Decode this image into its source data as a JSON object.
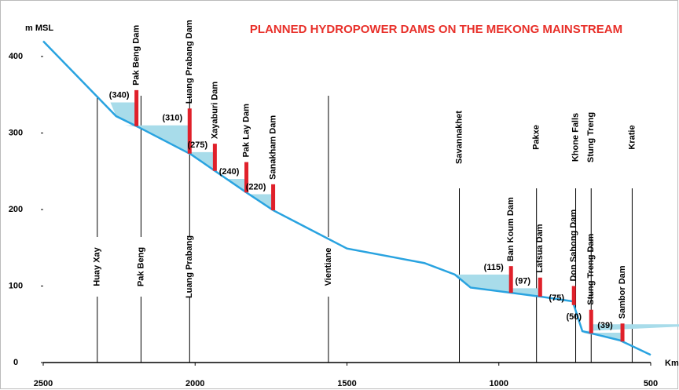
{
  "chart_data": {
    "type": "line",
    "title": "PLANNED HYDROPOWER DAMS ON THE MEKONG MAINSTREAM",
    "ylabel": "m MSL",
    "xlabel": "Km",
    "xlim": [
      2500,
      500
    ],
    "ylim": [
      0,
      440
    ],
    "xticks": [
      2500,
      2000,
      1500,
      1000,
      500
    ],
    "yticks": [
      0,
      100,
      200,
      300,
      400
    ],
    "series": [
      {
        "name": "Mekong",
        "color": "#29a3e0",
        "x": [
          2500,
          2260,
          2188,
          2013,
          1933,
          1830,
          1743,
          1500,
          1245,
          1145,
          1093,
          860,
          757,
          725,
          601,
          500
        ],
        "values": [
          420,
          322,
          308,
          272,
          250,
          222,
          199,
          149,
          130,
          115,
          98,
          86,
          80,
          41,
          29,
          10
        ]
      }
    ],
    "dams": {
      "color": "#e0202a",
      "shade": "#a8dcea",
      "names": [
        "Pak Beng Dam",
        "Luang Prabang Dam",
        "Xayaburi Dam",
        "Pak Lay Dam",
        "Sanakham Dam",
        "Ban Koum Dam",
        "Latsua Dam",
        "Don Sahong Dam",
        "Stung Treng Dam",
        "Sambor Dam"
      ],
      "x": [
        2193,
        2018,
        1935,
        1831,
        1743,
        960,
        864,
        753,
        696,
        593
      ],
      "top": [
        356,
        332,
        286,
        262,
        233,
        126,
        111,
        100,
        69,
        51
      ],
      "levels": [
        340,
        310,
        275,
        240,
        220,
        115,
        97,
        75,
        50,
        39
      ],
      "level_labels": [
        "(340)",
        "(310)",
        "(275)",
        "(240)",
        "(220)",
        "(115)",
        "(97)",
        "(75)",
        "(50)",
        "(39)"
      ]
    },
    "places": {
      "names": [
        "Huay Xay",
        "Pak Beng",
        "Luang Prabang",
        "Vientiane",
        "Savannakhet",
        "Pakxe",
        "Khone Falls",
        "Stung Treng",
        "Kratie"
      ],
      "x": [
        2322,
        2178,
        2018,
        1561,
        1130,
        876,
        747,
        696,
        561
      ]
    }
  }
}
